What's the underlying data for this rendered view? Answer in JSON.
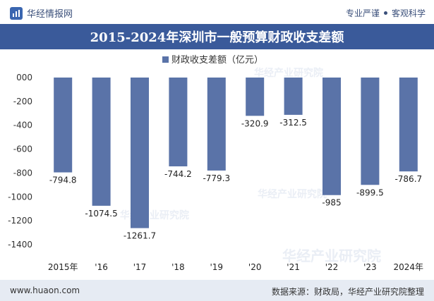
{
  "header": {
    "brand_name": "华经情报网",
    "tag_1": "专业严谨",
    "tag_2": "客观科学"
  },
  "title": "2015-2024年深圳市一般预算财政收支差额",
  "footer": {
    "website": "www.huaon.com",
    "source": "数据来源：财政局，华经产业研究院整理"
  },
  "watermark": "华经产业研究院",
  "colors": {
    "bar": "#5a73a8",
    "title_band": "#3a5a9a",
    "footer_bg": "#e6ebf3"
  },
  "chart_data": {
    "type": "bar",
    "legend": "财政收支差额（亿元）",
    "legend_position": "top-center",
    "categories": [
      "2015年",
      "'16",
      "'17",
      "'18",
      "'19",
      "'20",
      "'21",
      "'22",
      "'23",
      "2024年"
    ],
    "series": [
      {
        "name": "财政收支差额（亿元）",
        "values": [
          -794.8,
          -1074.5,
          -1261.7,
          -744.2,
          -779.3,
          -320.9,
          -312.5,
          -985,
          -899.5,
          -786.7
        ],
        "labels": [
          "-794.8",
          "-1074.5",
          "-1261.7",
          "-744.2",
          "-779.3",
          "-320.9",
          "-312.5",
          "-985",
          "-899.5",
          "-786.7"
        ]
      }
    ],
    "ylim": [
      -1400,
      0
    ],
    "yticks": [
      0,
      -200,
      -400,
      -600,
      -800,
      -1000,
      -1200,
      -1400
    ],
    "ytick_labels": [
      "000",
      "-200",
      "-400",
      "-600",
      "-800",
      "-1000",
      "-1200",
      "-1400"
    ],
    "grid": false
  }
}
